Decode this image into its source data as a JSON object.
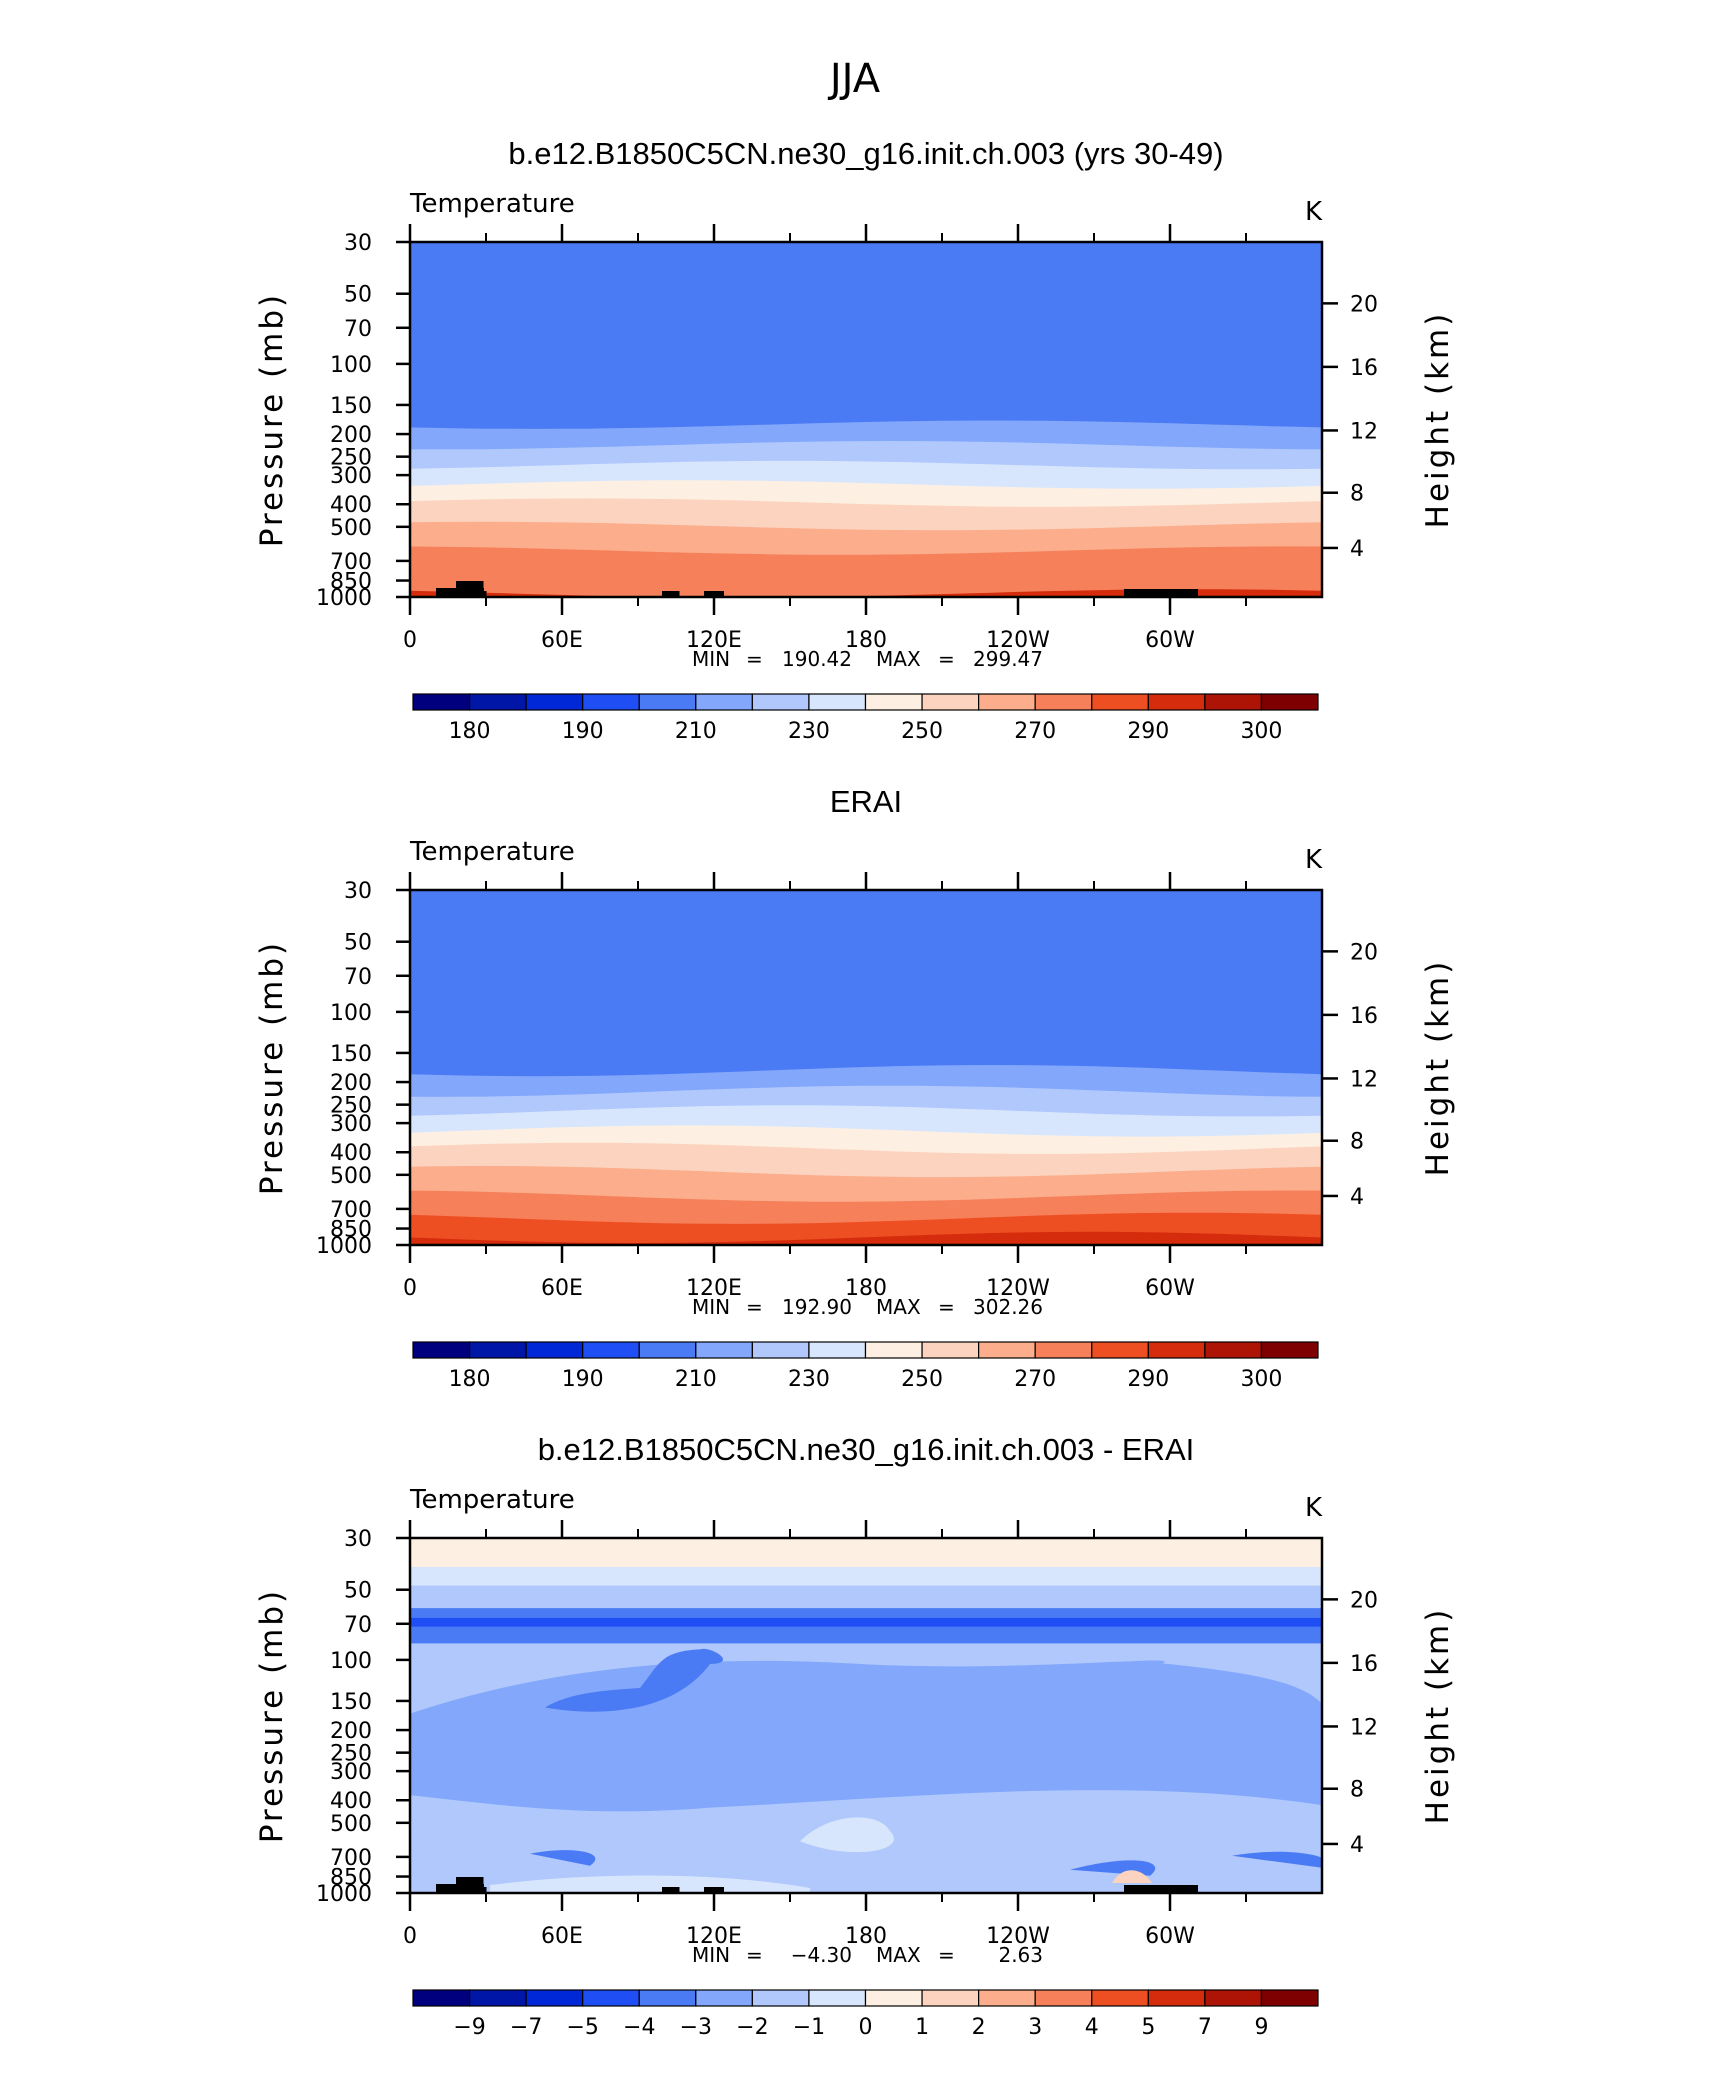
{
  "figure": {
    "main_title": "JJA"
  },
  "colors": {
    "temp_palette": [
      "#00007f",
      "#0016a6",
      "#0028d6",
      "#1f4ef5",
      "#4a7bf5",
      "#83a8fb",
      "#b0c8fc",
      "#d8e6fd",
      "#fdf0e2",
      "#fcd3bf",
      "#fbad8c",
      "#f6805a",
      "#ee4f22",
      "#d42c0c",
      "#ae1405",
      "#7e0000"
    ],
    "diff_palette": [
      "#00007f",
      "#0016a6",
      "#0028d6",
      "#1f4ef5",
      "#4a7bf5",
      "#83a8fb",
      "#b0c8fc",
      "#d8e6fd",
      "#fdf0e2",
      "#fcd3bf",
      "#fbad8c",
      "#f6805a",
      "#ee4f22",
      "#d42c0c",
      "#ae1405",
      "#7e0000"
    ],
    "topography": "#000000"
  },
  "chart_data": [
    {
      "type": "heatmap",
      "title": "b.e12.B1850C5CN.ne30_g16.init.ch.003 (yrs 30-49)",
      "variable_label": "Temperature",
      "units": "K",
      "ylabel": "Pressure (mb)",
      "ylabel_right": "Height (km)",
      "x_ticks": [
        "0",
        "60E",
        "120E",
        "180",
        "120W",
        "60W"
      ],
      "x_tick_lon": [
        0,
        60,
        120,
        180,
        240,
        300
      ],
      "xlim": [
        0,
        360
      ],
      "y_ticks": [
        30,
        50,
        70,
        100,
        150,
        200,
        250,
        300,
        400,
        500,
        700,
        850,
        1000
      ],
      "ylim": [
        30,
        1000
      ],
      "y_scale": "log",
      "height_ticks": [
        20,
        16,
        12,
        8,
        4
      ],
      "stats": {
        "min_label": "MIN",
        "min": "190.42",
        "max_label": "MAX",
        "max": "299.47"
      },
      "colorbar_labels": [
        "180",
        "190",
        "210",
        "230",
        "250",
        "270",
        "290",
        "300"
      ],
      "profile_p": [
        30,
        40,
        50,
        65,
        100,
        140,
        175,
        215,
        260,
        310,
        360,
        450,
        560,
        680,
        800,
        900,
        1000
      ],
      "profile_v": [
        206,
        208,
        206,
        200,
        192,
        198,
        208,
        218,
        228,
        236,
        246,
        256,
        265,
        273,
        280,
        286,
        292
      ]
    },
    {
      "type": "heatmap",
      "title": "ERAI",
      "variable_label": "Temperature",
      "units": "K",
      "ylabel": "Pressure (mb)",
      "ylabel_right": "Height (km)",
      "x_ticks": [
        "0",
        "60E",
        "120E",
        "180",
        "120W",
        "60W"
      ],
      "x_tick_lon": [
        0,
        60,
        120,
        180,
        240,
        300
      ],
      "xlim": [
        0,
        360
      ],
      "y_ticks": [
        30,
        50,
        70,
        100,
        150,
        200,
        250,
        300,
        400,
        500,
        700,
        850,
        1000
      ],
      "ylim": [
        30,
        1000
      ],
      "y_scale": "log",
      "height_ticks": [
        20,
        16,
        12,
        8,
        4
      ],
      "stats": {
        "min_label": "MIN",
        "min": "192.90",
        "max_label": "MAX",
        "max": "302.26"
      },
      "colorbar_labels": [
        "180",
        "190",
        "210",
        "230",
        "250",
        "270",
        "290",
        "300"
      ],
      "profile_p": [
        30,
        40,
        50,
        65,
        100,
        140,
        175,
        215,
        260,
        310,
        360,
        450,
        560,
        680,
        800,
        900,
        1000
      ],
      "profile_v": [
        207,
        208,
        205,
        200,
        193,
        199,
        209,
        219,
        229,
        237,
        247,
        257,
        266,
        274,
        282,
        288,
        295
      ]
    },
    {
      "type": "heatmap",
      "title": "b.e12.B1850C5CN.ne30_g16.init.ch.003 - ERAI",
      "variable_label": "Temperature",
      "units": "K",
      "ylabel": "Pressure (mb)",
      "ylabel_right": "Height (km)",
      "x_ticks": [
        "0",
        "60E",
        "120E",
        "180",
        "120W",
        "60W"
      ],
      "x_tick_lon": [
        0,
        60,
        120,
        180,
        240,
        300
      ],
      "xlim": [
        0,
        360
      ],
      "y_ticks": [
        30,
        50,
        70,
        100,
        150,
        200,
        250,
        300,
        400,
        500,
        700,
        850,
        1000
      ],
      "ylim": [
        30,
        1000
      ],
      "y_scale": "log",
      "height_ticks": [
        20,
        16,
        12,
        8,
        4
      ],
      "stats": {
        "min_label": "MIN",
        "min": "−4.30",
        "max_label": "MAX",
        "max": "2.63"
      },
      "colorbar_labels": [
        "−9",
        "−7",
        "−5",
        "−4",
        "−3",
        "−2",
        "−1",
        "0",
        "1",
        "2",
        "3",
        "4",
        "5",
        "7",
        "9"
      ]
    }
  ]
}
